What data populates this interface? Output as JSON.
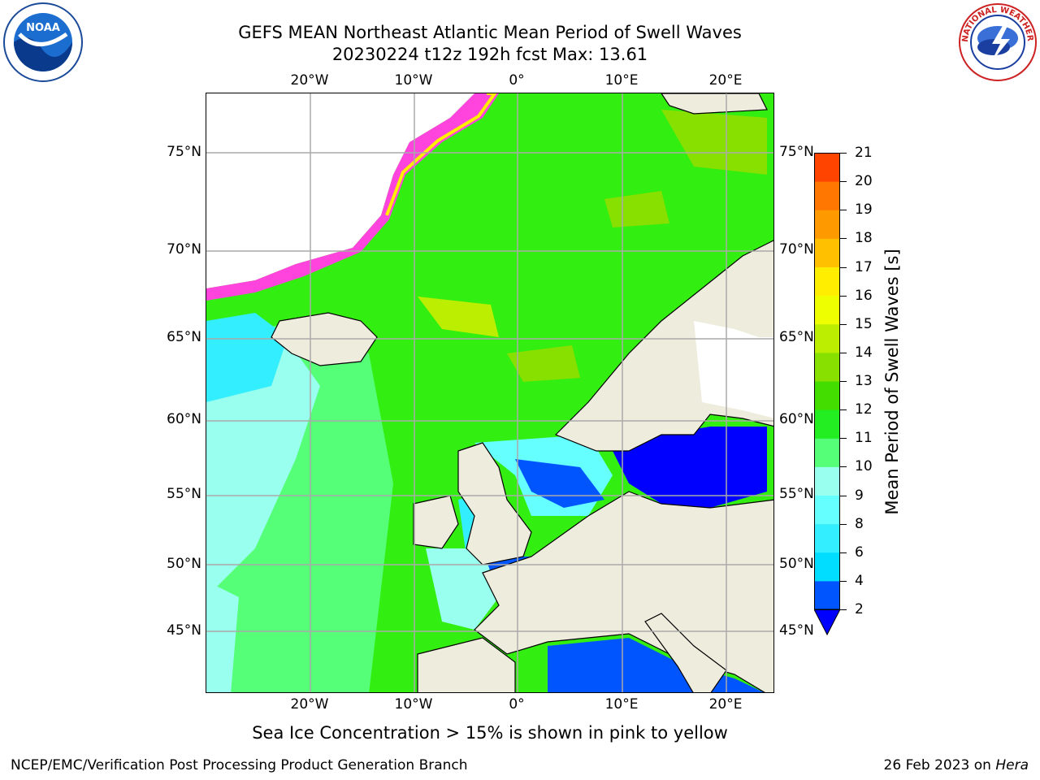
{
  "title": {
    "line1": "GEFS MEAN Northeast Atlantic Mean Period of Swell Waves",
    "line2": "20230224 t12z 192h fcst   Max: 13.61"
  },
  "axes": {
    "lon_labels": [
      "20°W",
      "10°W",
      "0°",
      "10°E",
      "20°E"
    ],
    "lat_labels_left": [
      "75°N",
      "70°N",
      "65°N",
      "60°N",
      "55°N",
      "50°N",
      "45°N"
    ],
    "lat_labels_right": [
      "75°N",
      "70°N",
      "65°N",
      "60°N",
      "55°N",
      "50°N",
      "45°N"
    ]
  },
  "colorbar": {
    "title": "Mean Period of Swell Waves [s]",
    "ticks": [
      "2",
      "4",
      "6",
      "8",
      "9",
      "10",
      "11",
      "12",
      "13",
      "14",
      "15",
      "16",
      "17",
      "18",
      "19",
      "20",
      "21"
    ],
    "colors": [
      "#0055ff",
      "#00ddff",
      "#33eeff",
      "#66ffff",
      "#99ffee",
      "#55ff77",
      "#22ee22",
      "#44dd00",
      "#88e000",
      "#bbee00",
      "#eeff00",
      "#ffee00",
      "#ffc000",
      "#ff9900",
      "#ff7700",
      "#ff4400",
      "#ff1100"
    ],
    "under_color": "#0000ff"
  },
  "subtitle": "Sea Ice Concentration > 15% is shown in pink to yellow",
  "footer": {
    "left": "NCEP/EMC/Verification Post Processing Product Generation Branch",
    "right_date": "26 Feb 2023 on ",
    "right_machine": "Hera"
  },
  "logos": {
    "left_icon": "noaa-logo-icon",
    "left_text": "NOAA",
    "right_icon": "nws-logo-icon",
    "right_text": "NATIONAL WEATHER SERVICE"
  }
}
